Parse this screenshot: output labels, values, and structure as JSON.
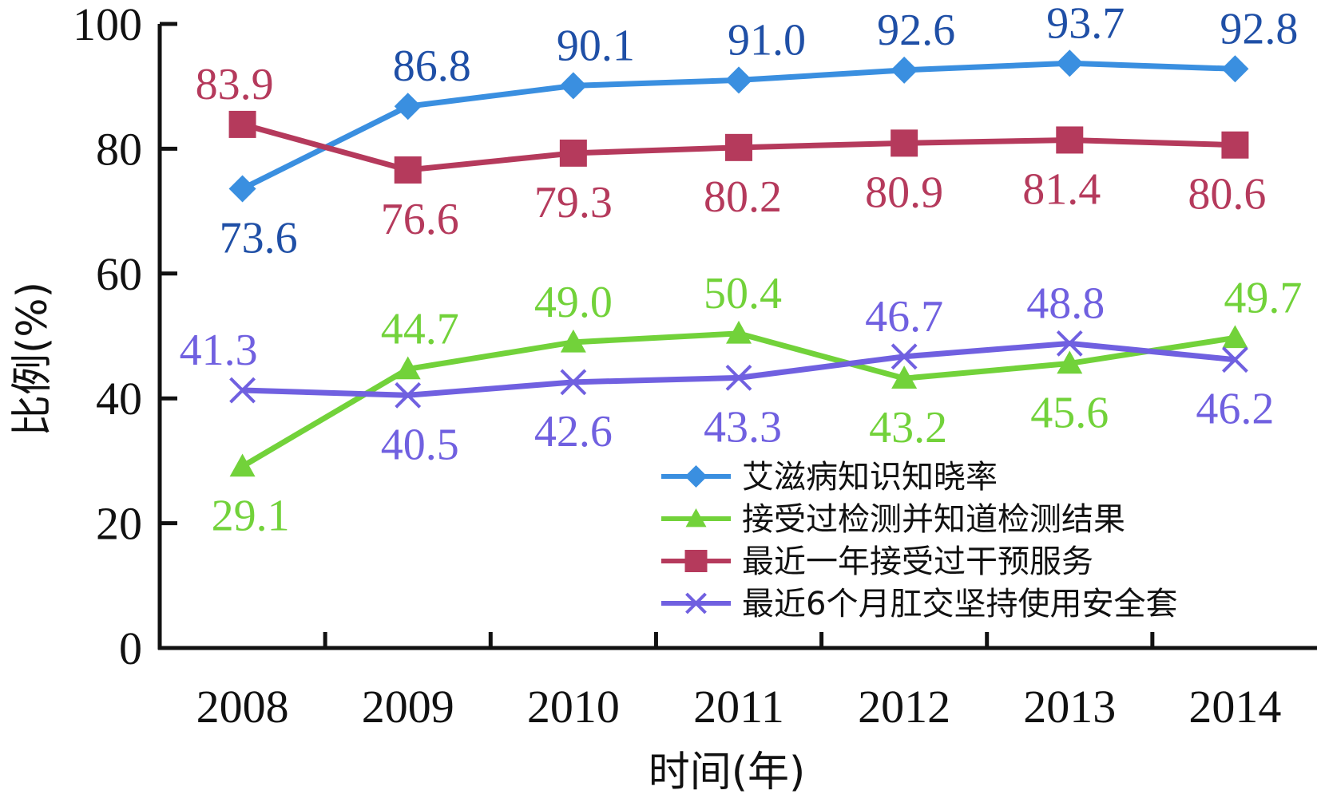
{
  "chart_data": {
    "type": "line",
    "xlabel": "时间(年)",
    "ylabel": "比例(%)",
    "ylim": [
      0,
      100
    ],
    "yticks": [
      0,
      20,
      40,
      60,
      80,
      100
    ],
    "categories": [
      "2008",
      "2009",
      "2010",
      "2011",
      "2012",
      "2013",
      "2014"
    ],
    "legend_position": "bottom-right",
    "grid": false,
    "series": [
      {
        "name": "艾滋病知识知晓率",
        "color": "#3a8fe0",
        "label_color": "#1f4fa6",
        "marker": "diamond",
        "values": [
          73.6,
          86.8,
          90.1,
          91.0,
          92.6,
          93.7,
          92.8
        ],
        "labels": [
          "73.6",
          "86.8",
          "90.1",
          "91.0",
          "92.6",
          "93.7",
          "92.8"
        ]
      },
      {
        "name": "接受过检测并知道检测结果",
        "color": "#72d23a",
        "label_color": "#72d23a",
        "marker": "triangle",
        "values": [
          29.1,
          44.7,
          49.0,
          50.4,
          43.2,
          45.6,
          49.7
        ],
        "labels": [
          "29.1",
          "44.7",
          "49.0",
          "50.4",
          "43.2",
          "45.6",
          "49.7"
        ]
      },
      {
        "name": "最近一年接受过干预服务",
        "color": "#b53a5c",
        "label_color": "#b53a5c",
        "marker": "square",
        "values": [
          83.9,
          76.6,
          79.3,
          80.2,
          80.9,
          81.4,
          80.6
        ],
        "labels": [
          "83.9",
          "76.6",
          "79.3",
          "80.2",
          "80.9",
          "81.4",
          "80.6"
        ]
      },
      {
        "name": "最近6个月肛交坚持使用安全套",
        "color": "#7060e0",
        "label_color": "#7060e0",
        "marker": "x",
        "values": [
          41.3,
          40.5,
          42.6,
          43.3,
          46.7,
          48.8,
          46.2
        ],
        "labels": [
          "41.3",
          "40.5",
          "42.6",
          "43.3",
          "46.7",
          "48.8",
          "46.2"
        ]
      }
    ]
  }
}
